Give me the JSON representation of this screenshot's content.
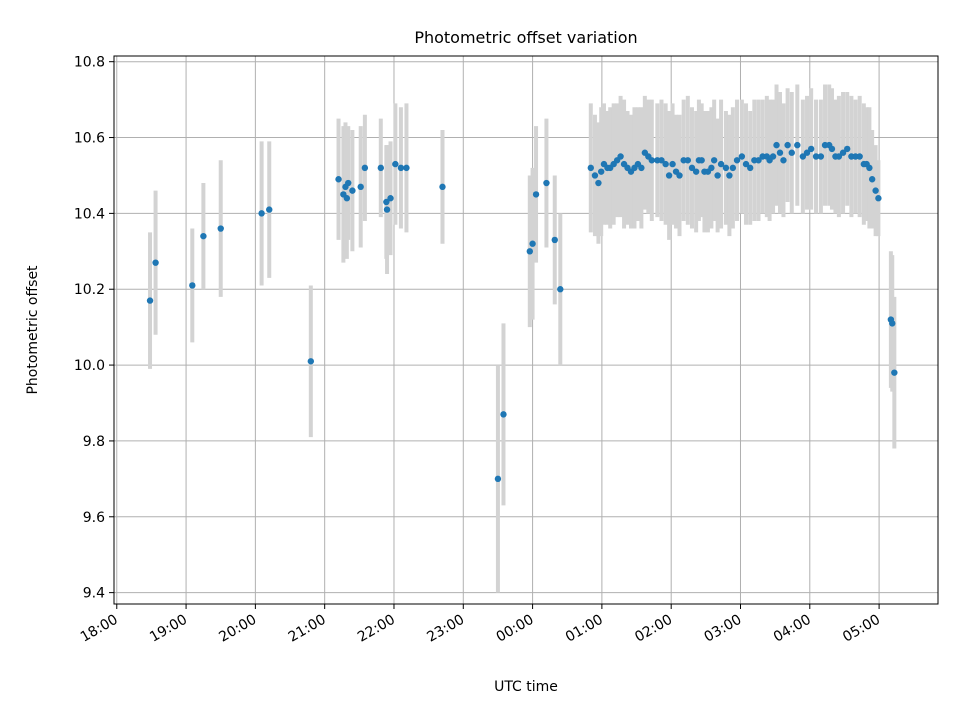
{
  "chart_data": {
    "type": "scatter",
    "title": "Photometric offset variation",
    "xlabel": "UTC time",
    "ylabel": "Photometric offset",
    "x_unit": "hours, continuous from 18:00 on the first day (24.0 = 00:00 next day)",
    "xlim": [
      17.96,
      29.85
    ],
    "ylim": [
      9.37,
      10.815
    ],
    "x_ticks": [
      {
        "value": 18,
        "label": "18:00"
      },
      {
        "value": 19,
        "label": "19:00"
      },
      {
        "value": 20,
        "label": "20:00"
      },
      {
        "value": 21,
        "label": "21:00"
      },
      {
        "value": 22,
        "label": "22:00"
      },
      {
        "value": 23,
        "label": "23:00"
      },
      {
        "value": 24,
        "label": "00:00"
      },
      {
        "value": 25,
        "label": "01:00"
      },
      {
        "value": 26,
        "label": "02:00"
      },
      {
        "value": 27,
        "label": "03:00"
      },
      {
        "value": 28,
        "label": "04:00"
      },
      {
        "value": 29,
        "label": "05:00"
      }
    ],
    "y_ticks": [
      {
        "value": 9.4,
        "label": "9.4"
      },
      {
        "value": 9.6,
        "label": "9.6"
      },
      {
        "value": 9.8,
        "label": "9.8"
      },
      {
        "value": 10.0,
        "label": "10.0"
      },
      {
        "value": 10.2,
        "label": "10.2"
      },
      {
        "value": 10.4,
        "label": "10.4"
      },
      {
        "value": 10.6,
        "label": "10.6"
      },
      {
        "value": 10.8,
        "label": "10.8"
      }
    ],
    "grid": true,
    "marker_color": "#1f77b4",
    "errorbar_color": "#d3d3d3",
    "points": [
      [
        18.48,
        10.17,
        0.18
      ],
      [
        18.56,
        10.27,
        0.19
      ],
      [
        19.09,
        10.21,
        0.15
      ],
      [
        19.25,
        10.34,
        0.14
      ],
      [
        19.5,
        10.36,
        0.18
      ],
      [
        20.09,
        10.4,
        0.19
      ],
      [
        20.2,
        10.41,
        0.18
      ],
      [
        20.8,
        10.01,
        0.2
      ],
      [
        21.2,
        10.49,
        0.16
      ],
      [
        21.27,
        10.45,
        0.18
      ],
      [
        21.3,
        10.47,
        0.17
      ],
      [
        21.32,
        10.44,
        0.16
      ],
      [
        21.34,
        10.48,
        0.15
      ],
      [
        21.4,
        10.46,
        0.16
      ],
      [
        21.52,
        10.47,
        0.16
      ],
      [
        21.58,
        10.52,
        0.14
      ],
      [
        21.81,
        10.52,
        0.13
      ],
      [
        21.89,
        10.43,
        0.15
      ],
      [
        21.9,
        10.41,
        0.17
      ],
      [
        21.95,
        10.44,
        0.15
      ],
      [
        22.02,
        10.53,
        0.16
      ],
      [
        22.1,
        10.52,
        0.16
      ],
      [
        22.18,
        10.52,
        0.17
      ],
      [
        22.7,
        10.47,
        0.15
      ],
      [
        23.5,
        9.7,
        0.3
      ],
      [
        23.58,
        9.87,
        0.24
      ],
      [
        23.96,
        10.3,
        0.2
      ],
      [
        24.0,
        10.32,
        0.2
      ],
      [
        24.05,
        10.45,
        0.18
      ],
      [
        24.2,
        10.48,
        0.17
      ],
      [
        24.32,
        10.33,
        0.17
      ],
      [
        24.4,
        10.2,
        0.2
      ],
      [
        24.84,
        10.52,
        0.17
      ],
      [
        24.9,
        10.5,
        0.16
      ],
      [
        24.95,
        10.48,
        0.16
      ],
      [
        24.99,
        10.51,
        0.17
      ],
      [
        25.03,
        10.53,
        0.16
      ],
      [
        25.08,
        10.52,
        0.15
      ],
      [
        25.12,
        10.52,
        0.16
      ],
      [
        25.17,
        10.53,
        0.16
      ],
      [
        25.22,
        10.54,
        0.15
      ],
      [
        25.27,
        10.55,
        0.16
      ],
      [
        25.32,
        10.53,
        0.17
      ],
      [
        25.37,
        10.52,
        0.15
      ],
      [
        25.42,
        10.51,
        0.15
      ],
      [
        25.47,
        10.52,
        0.16
      ],
      [
        25.52,
        10.53,
        0.15
      ],
      [
        25.57,
        10.52,
        0.16
      ],
      [
        25.62,
        10.56,
        0.15
      ],
      [
        25.67,
        10.55,
        0.15
      ],
      [
        25.72,
        10.54,
        0.16
      ],
      [
        25.8,
        10.54,
        0.15
      ],
      [
        25.86,
        10.54,
        0.16
      ],
      [
        25.92,
        10.53,
        0.16
      ],
      [
        25.97,
        10.5,
        0.17
      ],
      [
        26.02,
        10.53,
        0.16
      ],
      [
        26.07,
        10.51,
        0.15
      ],
      [
        26.12,
        10.5,
        0.16
      ],
      [
        26.18,
        10.54,
        0.16
      ],
      [
        26.24,
        10.54,
        0.17
      ],
      [
        26.3,
        10.52,
        0.16
      ],
      [
        26.36,
        10.51,
        0.16
      ],
      [
        26.4,
        10.54,
        0.16
      ],
      [
        26.44,
        10.54,
        0.15
      ],
      [
        26.48,
        10.51,
        0.16
      ],
      [
        26.53,
        10.51,
        0.16
      ],
      [
        26.58,
        10.52,
        0.16
      ],
      [
        26.62,
        10.54,
        0.16
      ],
      [
        26.67,
        10.5,
        0.15
      ],
      [
        26.72,
        10.53,
        0.17
      ],
      [
        26.79,
        10.52,
        0.15
      ],
      [
        26.84,
        10.5,
        0.16
      ],
      [
        26.89,
        10.52,
        0.16
      ],
      [
        26.95,
        10.54,
        0.16
      ],
      [
        27.02,
        10.55,
        0.15
      ],
      [
        27.08,
        10.53,
        0.16
      ],
      [
        27.14,
        10.52,
        0.15
      ],
      [
        27.2,
        10.54,
        0.16
      ],
      [
        27.26,
        10.54,
        0.16
      ],
      [
        27.32,
        10.55,
        0.15
      ],
      [
        27.38,
        10.55,
        0.16
      ],
      [
        27.42,
        10.54,
        0.16
      ],
      [
        27.47,
        10.55,
        0.15
      ],
      [
        27.52,
        10.58,
        0.16
      ],
      [
        27.57,
        10.56,
        0.16
      ],
      [
        27.62,
        10.54,
        0.15
      ],
      [
        27.68,
        10.58,
        0.15
      ],
      [
        27.74,
        10.56,
        0.16
      ],
      [
        27.82,
        10.58,
        0.16
      ],
      [
        27.9,
        10.55,
        0.15
      ],
      [
        27.96,
        10.56,
        0.15
      ],
      [
        28.02,
        10.57,
        0.16
      ],
      [
        28.09,
        10.55,
        0.15
      ],
      [
        28.16,
        10.55,
        0.15
      ],
      [
        28.22,
        10.58,
        0.16
      ],
      [
        28.28,
        10.58,
        0.16
      ],
      [
        28.32,
        10.57,
        0.16
      ],
      [
        28.37,
        10.55,
        0.15
      ],
      [
        28.42,
        10.55,
        0.16
      ],
      [
        28.48,
        10.56,
        0.16
      ],
      [
        28.54,
        10.57,
        0.15
      ],
      [
        28.6,
        10.55,
        0.16
      ],
      [
        28.66,
        10.55,
        0.15
      ],
      [
        28.72,
        10.55,
        0.16
      ],
      [
        28.78,
        10.53,
        0.16
      ],
      [
        28.82,
        10.53,
        0.15
      ],
      [
        28.86,
        10.52,
        0.16
      ],
      [
        28.9,
        10.49,
        0.13
      ],
      [
        28.95,
        10.46,
        0.12
      ],
      [
        28.99,
        10.44,
        0.1
      ],
      [
        29.17,
        10.12,
        0.18
      ],
      [
        29.19,
        10.11,
        0.18
      ],
      [
        29.22,
        9.98,
        0.2
      ]
    ]
  }
}
